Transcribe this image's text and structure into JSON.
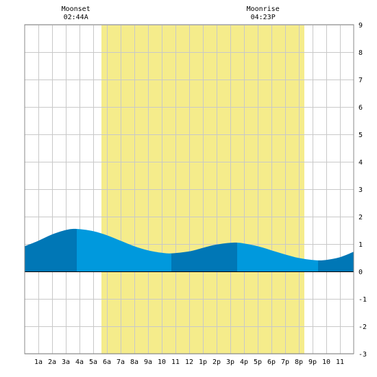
{
  "moon_events": [
    {
      "label": "Moonset",
      "time": "02:44A",
      "hour": 2.733
    },
    {
      "label": "Moonrise",
      "time": "04:23P",
      "hour": 16.383
    }
  ],
  "chart_data": {
    "type": "area",
    "xlim": [
      -1,
      23
    ],
    "ylim": [
      -3,
      9
    ],
    "x_ticks": [
      {
        "hour": 0,
        "label": "1a"
      },
      {
        "hour": 1,
        "label": "2a"
      },
      {
        "hour": 2,
        "label": "3a"
      },
      {
        "hour": 3,
        "label": "4a"
      },
      {
        "hour": 4,
        "label": "5a"
      },
      {
        "hour": 5,
        "label": "6a"
      },
      {
        "hour": 6,
        "label": "7a"
      },
      {
        "hour": 7,
        "label": "8a"
      },
      {
        "hour": 8,
        "label": "9a"
      },
      {
        "hour": 9,
        "label": "10"
      },
      {
        "hour": 10,
        "label": "11"
      },
      {
        "hour": 11,
        "label": "12"
      },
      {
        "hour": 12,
        "label": "1p"
      },
      {
        "hour": 13,
        "label": "2p"
      },
      {
        "hour": 14,
        "label": "3p"
      },
      {
        "hour": 15,
        "label": "4p"
      },
      {
        "hour": 16,
        "label": "5p"
      },
      {
        "hour": 17,
        "label": "6p"
      },
      {
        "hour": 18,
        "label": "7p"
      },
      {
        "hour": 19,
        "label": "8p"
      },
      {
        "hour": 20,
        "label": "9p"
      },
      {
        "hour": 21,
        "label": "10"
      },
      {
        "hour": 22,
        "label": "11"
      }
    ],
    "y_ticks": [
      -3,
      -2,
      -1,
      0,
      1,
      2,
      3,
      4,
      5,
      6,
      7,
      8,
      9
    ],
    "daylight": {
      "start": 4.6,
      "end": 19.4
    },
    "tide_series": [
      {
        "hour": -1.0,
        "height": 0.92
      },
      {
        "hour": 0.0,
        "height": 1.12
      },
      {
        "hour": 1.0,
        "height": 1.35
      },
      {
        "hour": 2.0,
        "height": 1.51
      },
      {
        "hour": 2.8,
        "height": 1.55
      },
      {
        "hour": 4.0,
        "height": 1.47
      },
      {
        "hour": 5.0,
        "height": 1.32
      },
      {
        "hour": 6.0,
        "height": 1.12
      },
      {
        "hour": 7.0,
        "height": 0.92
      },
      {
        "hour": 8.0,
        "height": 0.77
      },
      {
        "hour": 9.0,
        "height": 0.68
      },
      {
        "hour": 9.7,
        "height": 0.66
      },
      {
        "hour": 11.0,
        "height": 0.73
      },
      {
        "hour": 12.0,
        "height": 0.86
      },
      {
        "hour": 13.0,
        "height": 0.98
      },
      {
        "hour": 14.2,
        "height": 1.05
      },
      {
        "hour": 15.0,
        "height": 1.02
      },
      {
        "hour": 16.0,
        "height": 0.92
      },
      {
        "hour": 17.0,
        "height": 0.77
      },
      {
        "hour": 18.0,
        "height": 0.62
      },
      {
        "hour": 19.0,
        "height": 0.49
      },
      {
        "hour": 20.0,
        "height": 0.42
      },
      {
        "hour": 20.8,
        "height": 0.41
      },
      {
        "hour": 22.0,
        "height": 0.52
      },
      {
        "hour": 23.0,
        "height": 0.72
      }
    ],
    "tide_bands": [
      {
        "start": -1.0,
        "end": 2.8,
        "color": "#0077b6"
      },
      {
        "start": 2.8,
        "end": 9.7,
        "color": "#0099dd"
      },
      {
        "start": 9.7,
        "end": 14.5,
        "color": "#0077b6"
      },
      {
        "start": 14.5,
        "end": 20.4,
        "color": "#0099dd"
      },
      {
        "start": 20.4,
        "end": 23.0,
        "color": "#0077b6"
      }
    ],
    "grid": true,
    "colors": {
      "daylight": "#f5ec8b",
      "grid": "#c8c8c8",
      "frame": "#888888",
      "zero_line": "#000000"
    }
  }
}
